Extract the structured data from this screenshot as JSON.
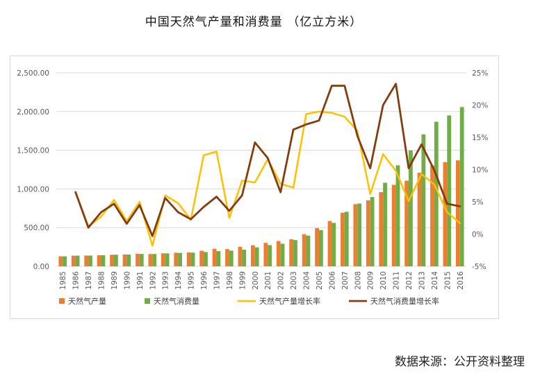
{
  "title": "中国天然气产量和消费量 （亿立方米）",
  "source": "数据来源：公开资料整理",
  "colors": {
    "production": "#ED7D31",
    "consumption": "#70AD47",
    "production_growth": "#FFC000",
    "consumption_growth": "#843C0C",
    "grid": "#d9d9d9",
    "text": "#595959"
  },
  "chart_data": {
    "type": "bar",
    "combo": "bar+line, dual axis",
    "categories": [
      "1985",
      "1986",
      "1987",
      "1988",
      "1989",
      "1990",
      "1991",
      "1992",
      "1993",
      "1994",
      "1995",
      "1996",
      "1997",
      "1998",
      "1999",
      "2000",
      "2001",
      "2002",
      "2003",
      "2004",
      "2005",
      "2006",
      "2007",
      "2008",
      "2009",
      "2010",
      "2011",
      "2012",
      "2013",
      "2014",
      "2015",
      "2016"
    ],
    "left_axis": {
      "ylim": [
        0,
        2500
      ],
      "ticks": [
        0,
        500,
        1000,
        1500,
        2000,
        2500
      ],
      "tick_labels": [
        "0.00",
        "500.00",
        "1,000.00",
        "1,500.00",
        "2,000.00",
        "2,500.00"
      ]
    },
    "right_axis": {
      "ylim": [
        -5,
        25
      ],
      "ticks": [
        -5,
        0,
        5,
        10,
        15,
        20,
        25
      ],
      "tick_labels": [
        "-5%",
        "0%",
        "5%",
        "10%",
        "15%",
        "20%",
        "25%"
      ]
    },
    "grid": true,
    "legend_position": "bottom",
    "series": [
      {
        "name": "天然气产量",
        "kind": "bar",
        "axis": "left",
        "values": [
          129,
          138,
          139,
          143,
          150,
          153,
          161,
          158,
          168,
          176,
          179,
          201,
          227,
          223,
          252,
          272,
          303,
          327,
          350,
          415,
          493,
          586,
          692,
          803,
          853,
          958,
          1053,
          1106,
          1209,
          1302,
          1346,
          1369
        ]
      },
      {
        "name": "天然气消费量",
        "kind": "bar",
        "axis": "left",
        "values": [
          129,
          138,
          139,
          143,
          150,
          153,
          160,
          160,
          168,
          173,
          177,
          185,
          196,
          203,
          215,
          245,
          274,
          292,
          339,
          397,
          468,
          561,
          705,
          812,
          895,
          1080,
          1305,
          1497,
          1705,
          1868,
          1950,
          2058
        ]
      },
      {
        "name": "天然气产量增长率",
        "kind": "line",
        "axis": "right",
        "values": [
          null,
          6.5,
          1.2,
          2.7,
          5.3,
          2.0,
          5.0,
          -1.8,
          6.0,
          4.8,
          2.2,
          12.2,
          12.8,
          2.5,
          8.3,
          8.0,
          11.6,
          7.8,
          7.2,
          18.6,
          19.0,
          18.8,
          18.2,
          16.0,
          6.2,
          12.4,
          9.8,
          5.1,
          9.3,
          7.7,
          3.4,
          1.7
        ]
      },
      {
        "name": "天然气消费量增长率",
        "kind": "line",
        "axis": "right",
        "values": [
          null,
          6.5,
          1.0,
          3.4,
          4.7,
          1.6,
          4.5,
          -0.3,
          5.6,
          3.4,
          2.3,
          4.2,
          5.8,
          3.6,
          6.0,
          14.2,
          11.8,
          6.5,
          16.2,
          17.0,
          17.6,
          23.0,
          23.0,
          15.2,
          10.2,
          20.0,
          23.3,
          10.2,
          13.9,
          9.9,
          4.7,
          4.3
        ]
      }
    ]
  }
}
